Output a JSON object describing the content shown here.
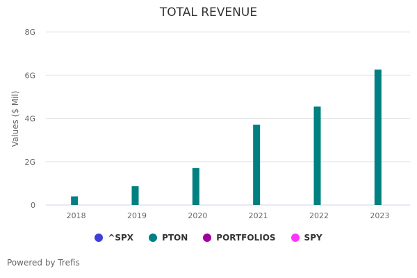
{
  "chart_data": {
    "type": "bar",
    "title": "TOTAL REVENUE",
    "ylabel": "Values ($ Mil)",
    "xlabel": "",
    "categories": [
      "2018",
      "2019",
      "2020",
      "2021",
      "2022",
      "2023"
    ],
    "yticks": [
      "0",
      "2G",
      "4G",
      "6G",
      "8G"
    ],
    "ylim": [
      0,
      8000
    ],
    "grid": true,
    "legend_position": "bottom",
    "series": [
      {
        "name": "^SPX",
        "color": "#3f3fd6",
        "values": [
          null,
          null,
          null,
          null,
          null,
          null
        ]
      },
      {
        "name": "PTON",
        "color": "#008080",
        "values": [
          400,
          870,
          1710,
          3710,
          4550,
          6260
        ]
      },
      {
        "name": "PORTFOLIOS",
        "color": "#a000a0",
        "values": [
          null,
          null,
          null,
          null,
          null,
          null
        ]
      },
      {
        "name": "SPY",
        "color": "#ff33ff",
        "values": [
          null,
          null,
          null,
          null,
          null,
          null
        ]
      }
    ]
  },
  "footer": {
    "credit": "Powered by Trefis"
  }
}
